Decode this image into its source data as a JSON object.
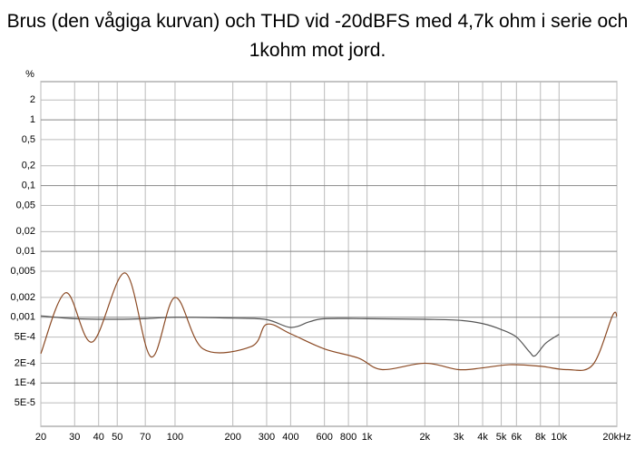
{
  "chart_data": {
    "type": "line",
    "title": "Brus (den vågiga kurvan) och THD vid -20dBFS med 4,7k ohm i serie och 1kohm mot jord.",
    "y_unit": "%",
    "log_x": true,
    "log_y": true,
    "grid": true,
    "xlim": [
      20,
      20000
    ],
    "ylim": [
      2.2e-05,
      3.8
    ],
    "xticks": [
      20,
      30,
      40,
      50,
      70,
      100,
      200,
      300,
      400,
      600,
      800,
      {
        "value": 1000,
        "label": "1k"
      },
      {
        "value": 2000,
        "label": "2k"
      },
      {
        "value": 3000,
        "label": "3k"
      },
      {
        "value": 4000,
        "label": "4k"
      },
      {
        "value": 5000,
        "label": "5k"
      },
      {
        "value": 6000,
        "label": "6k"
      },
      {
        "value": 8000,
        "label": "8k"
      },
      {
        "value": 10000,
        "label": "10k"
      },
      {
        "value": 20000,
        "label": "20kHz"
      }
    ],
    "yticks": [
      2,
      1,
      {
        "value": 0.5,
        "label": "0,5"
      },
      {
        "value": 0.2,
        "label": "0,2"
      },
      {
        "value": 0.1,
        "label": "0,1"
      },
      {
        "value": 0.05,
        "label": "0,05"
      },
      {
        "value": 0.02,
        "label": "0,02"
      },
      {
        "value": 0.01,
        "label": "0,01"
      },
      {
        "value": 0.005,
        "label": "0,005"
      },
      {
        "value": 0.002,
        "label": "0,002"
      },
      {
        "value": 0.001,
        "label": "0,001"
      },
      {
        "value": 0.0005,
        "label": "5E-4"
      },
      {
        "value": 0.0002,
        "label": "2E-4"
      },
      {
        "value": 0.0001,
        "label": "1E-4"
      },
      {
        "value": 5e-05,
        "label": "5E-5"
      }
    ],
    "series": [
      {
        "color": "#555555",
        "x": [
          20,
          30,
          50,
          70,
          100,
          200,
          300,
          400,
          500,
          600,
          1000,
          2000,
          3000,
          4000,
          5000,
          6000,
          7000,
          7500,
          8500,
          10000
        ],
        "values": [
          0.00105,
          0.00095,
          0.00093,
          0.00095,
          0.001,
          0.00097,
          0.00092,
          0.0007,
          0.00085,
          0.00095,
          0.00095,
          0.00093,
          0.0009,
          0.0008,
          0.00065,
          0.0005,
          0.0003,
          0.00026,
          0.0004,
          0.00055
        ]
      },
      {
        "color": "#8b4a24",
        "x": [
          20,
          27,
          37,
          55,
          75,
          100,
          140,
          250,
          300,
          400,
          600,
          900,
          1200,
          2000,
          3000,
          4000,
          5500,
          8000,
          11000,
          15000,
          19000,
          20000
        ],
        "values": [
          0.00028,
          0.00236,
          0.00042,
          0.0047,
          0.00025,
          0.002,
          0.00033,
          0.00036,
          0.00078,
          0.00056,
          0.00033,
          0.00024,
          0.00016,
          0.0002,
          0.00016,
          0.00017,
          0.00019,
          0.00018,
          0.00016,
          0.00019,
          0.00106,
          0.00103
        ]
      }
    ]
  }
}
